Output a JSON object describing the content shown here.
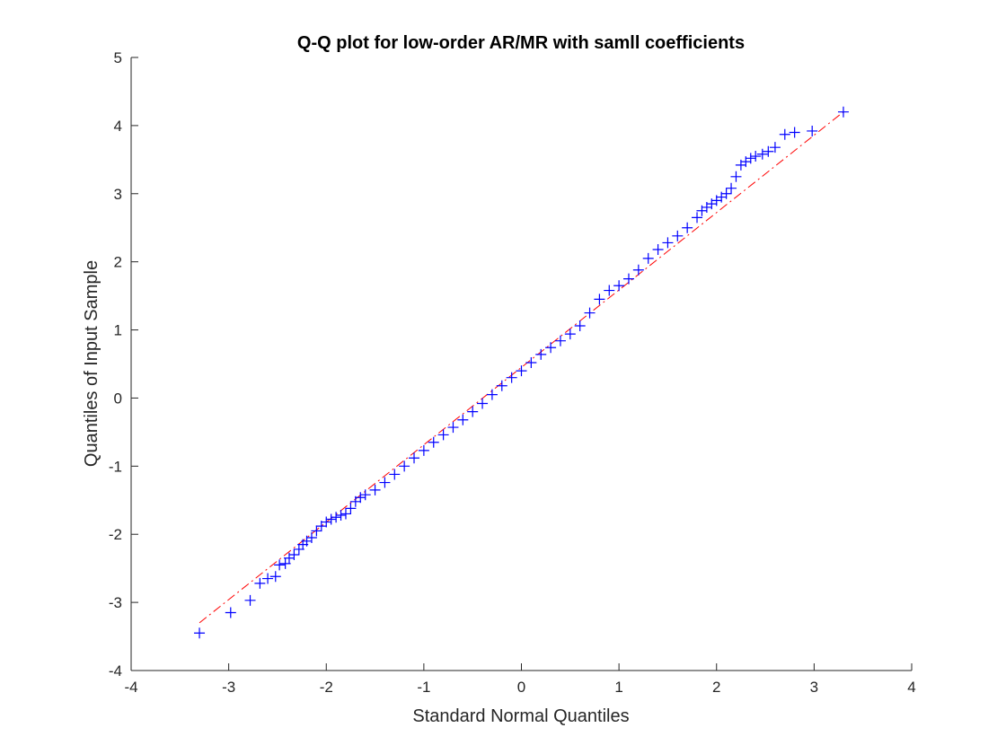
{
  "chart_data": {
    "type": "scatter",
    "title": "Q-Q plot for low-order AR/MR with samll coefficients",
    "xlabel": "Standard Normal Quantiles",
    "ylabel": "Quantiles of Input Sample",
    "xlim": [
      -4,
      4
    ],
    "ylim": [
      -4,
      5
    ],
    "xticks": [
      -4,
      -3,
      -2,
      -1,
      0,
      1,
      2,
      3,
      4
    ],
    "yticks": [
      -4,
      -3,
      -2,
      -1,
      0,
      1,
      2,
      3,
      4,
      5
    ],
    "grid": false,
    "marker_color": "#0000ff",
    "line_color": "#ff0000",
    "reference_line": {
      "x": [
        -3.3,
        3.3
      ],
      "y": [
        -3.3,
        4.2
      ]
    },
    "series": [
      {
        "marker": "+",
        "points": [
          [
            -3.3,
            -3.45
          ],
          [
            -2.98,
            -3.15
          ],
          [
            -2.78,
            -2.97
          ],
          [
            -2.68,
            -2.72
          ],
          [
            -2.6,
            -2.65
          ],
          [
            -2.52,
            -2.62
          ],
          [
            -2.48,
            -2.45
          ],
          [
            -2.42,
            -2.43
          ],
          [
            -2.38,
            -2.35
          ],
          [
            -2.33,
            -2.3
          ],
          [
            -2.28,
            -2.22
          ],
          [
            -2.24,
            -2.15
          ],
          [
            -2.2,
            -2.1
          ],
          [
            -2.15,
            -2.05
          ],
          [
            -2.1,
            -1.95
          ],
          [
            -2.05,
            -1.88
          ],
          [
            -2.0,
            -1.82
          ],
          [
            -1.95,
            -1.78
          ],
          [
            -1.9,
            -1.75
          ],
          [
            -1.85,
            -1.72
          ],
          [
            -1.8,
            -1.7
          ],
          [
            -1.75,
            -1.62
          ],
          [
            -1.7,
            -1.52
          ],
          [
            -1.65,
            -1.46
          ],
          [
            -1.6,
            -1.42
          ],
          [
            -1.5,
            -1.35
          ],
          [
            -1.4,
            -1.24
          ],
          [
            -1.3,
            -1.12
          ],
          [
            -1.2,
            -1.0
          ],
          [
            -1.1,
            -0.88
          ],
          [
            -1.0,
            -0.77
          ],
          [
            -0.9,
            -0.65
          ],
          [
            -0.8,
            -0.54
          ],
          [
            -0.7,
            -0.43
          ],
          [
            -0.6,
            -0.32
          ],
          [
            -0.5,
            -0.2
          ],
          [
            -0.4,
            -0.08
          ],
          [
            -0.3,
            0.05
          ],
          [
            -0.2,
            0.18
          ],
          [
            -0.1,
            0.3
          ],
          [
            0.0,
            0.4
          ],
          [
            0.1,
            0.52
          ],
          [
            0.2,
            0.64
          ],
          [
            0.3,
            0.74
          ],
          [
            0.4,
            0.84
          ],
          [
            0.5,
            0.94
          ],
          [
            0.6,
            1.06
          ],
          [
            0.7,
            1.25
          ],
          [
            0.8,
            1.45
          ],
          [
            0.9,
            1.58
          ],
          [
            1.0,
            1.65
          ],
          [
            1.1,
            1.75
          ],
          [
            1.2,
            1.88
          ],
          [
            1.3,
            2.05
          ],
          [
            1.4,
            2.18
          ],
          [
            1.5,
            2.28
          ],
          [
            1.6,
            2.38
          ],
          [
            1.7,
            2.5
          ],
          [
            1.8,
            2.65
          ],
          [
            1.85,
            2.75
          ],
          [
            1.9,
            2.8
          ],
          [
            1.95,
            2.85
          ],
          [
            2.0,
            2.9
          ],
          [
            2.05,
            2.95
          ],
          [
            2.1,
            3.0
          ],
          [
            2.15,
            3.08
          ],
          [
            2.2,
            3.25
          ],
          [
            2.25,
            3.42
          ],
          [
            2.3,
            3.47
          ],
          [
            2.35,
            3.52
          ],
          [
            2.4,
            3.55
          ],
          [
            2.47,
            3.58
          ],
          [
            2.53,
            3.62
          ],
          [
            2.6,
            3.68
          ],
          [
            2.7,
            3.87
          ],
          [
            2.8,
            3.9
          ],
          [
            2.98,
            3.92
          ],
          [
            3.3,
            4.2
          ]
        ]
      }
    ]
  }
}
